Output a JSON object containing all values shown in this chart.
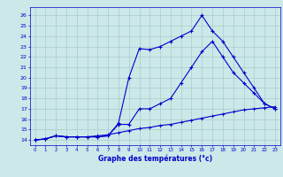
{
  "title": "Graphe des températures (°c)",
  "background_color": "#cce8e8",
  "grid_color": "#aacccc",
  "line_color": "#0000cc",
  "xlim": [
    -0.5,
    23.5
  ],
  "ylim": [
    13.5,
    26.8
  ],
  "yticks": [
    14,
    15,
    16,
    17,
    18,
    19,
    20,
    21,
    22,
    23,
    24,
    25,
    26
  ],
  "xticks": [
    0,
    1,
    2,
    3,
    4,
    5,
    6,
    7,
    8,
    9,
    10,
    11,
    12,
    13,
    14,
    15,
    16,
    17,
    18,
    19,
    20,
    21,
    22,
    23
  ],
  "line1_x": [
    0,
    1,
    2,
    3,
    4,
    5,
    6,
    7,
    8,
    9,
    10,
    11,
    12,
    13,
    14,
    15,
    16,
    17,
    18,
    19,
    20,
    21,
    22,
    23
  ],
  "line1_y": [
    14.0,
    14.1,
    14.4,
    14.3,
    14.3,
    14.3,
    14.3,
    14.4,
    15.6,
    20.0,
    22.8,
    22.7,
    23.0,
    23.5,
    24.0,
    24.5,
    26.0,
    24.5,
    23.5,
    22.0,
    20.5,
    19.0,
    17.5,
    17.0
  ],
  "line2_x": [
    0,
    1,
    2,
    3,
    4,
    5,
    6,
    7,
    8,
    9,
    10,
    11,
    12,
    13,
    14,
    15,
    16,
    17,
    18,
    19,
    20,
    21,
    22,
    23
  ],
  "line2_y": [
    14.0,
    14.1,
    14.4,
    14.3,
    14.3,
    14.3,
    14.3,
    14.4,
    15.5,
    15.5,
    17.0,
    17.0,
    17.5,
    18.0,
    19.5,
    21.0,
    22.5,
    23.5,
    22.0,
    20.5,
    19.5,
    18.5,
    17.5,
    17.0
  ],
  "line3_x": [
    0,
    1,
    2,
    3,
    4,
    5,
    6,
    7,
    8,
    9,
    10,
    11,
    12,
    13,
    14,
    15,
    16,
    17,
    18,
    19,
    20,
    21,
    22,
    23
  ],
  "line3_y": [
    14.0,
    14.1,
    14.4,
    14.3,
    14.3,
    14.3,
    14.4,
    14.5,
    14.7,
    14.9,
    15.1,
    15.2,
    15.4,
    15.5,
    15.7,
    15.9,
    16.1,
    16.3,
    16.5,
    16.7,
    16.9,
    17.0,
    17.1,
    17.2
  ]
}
